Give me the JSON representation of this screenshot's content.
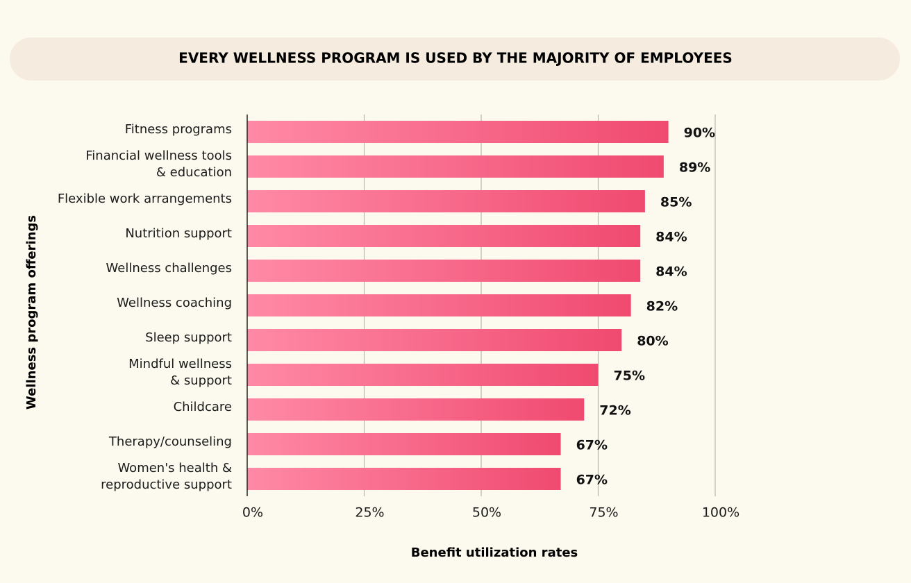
{
  "chart_data": {
    "type": "bar",
    "orientation": "horizontal",
    "title": "EVERY WELLNESS PROGRAM IS USED BY THE MAJORITY OF EMPLOYEES",
    "x_label": "Benefit utilization rates",
    "y_label": "Wellness program offerings",
    "categories": [
      "Fitness programs",
      "Financial wellness tools\n& education",
      "Flexible work arrangements",
      "Nutrition support",
      "Wellness challenges",
      "Wellness coaching",
      "Sleep support",
      "Mindful wellness\n& support",
      "Childcare",
      "Therapy/counseling",
      "Women's health &\nreproductive support"
    ],
    "values": [
      90,
      89,
      85,
      84,
      84,
      82,
      80,
      75,
      72,
      67,
      67
    ],
    "value_labels": [
      "90%",
      "89%",
      "85%",
      "84%",
      "84%",
      "82%",
      "80%",
      "75%",
      "72%",
      "67%",
      "67%"
    ],
    "color": "#f04a70",
    "xlim": [
      0,
      100
    ],
    "xticks": [
      {
        "value": 0,
        "label": "0%"
      },
      {
        "value": 25,
        "label": "25%"
      },
      {
        "value": 50,
        "label": "50%"
      },
      {
        "value": 75,
        "label": "75%"
      },
      {
        "value": 100,
        "label": "100%"
      }
    ],
    "grid": true
  }
}
